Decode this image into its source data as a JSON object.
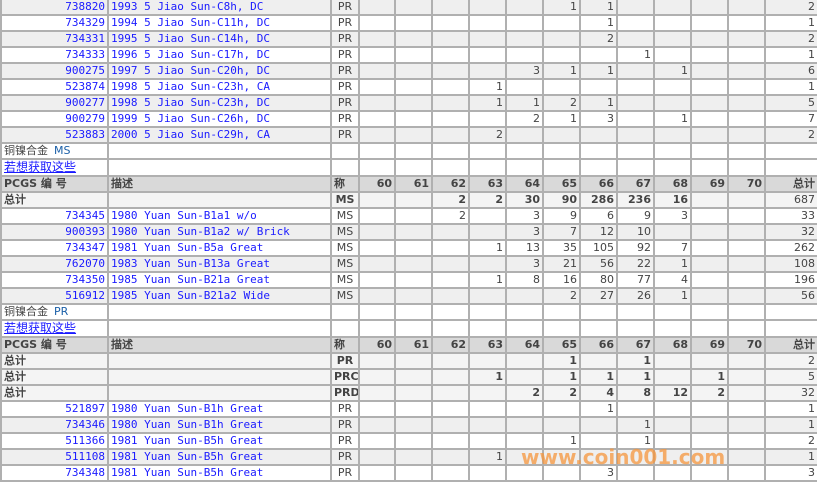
{
  "columns": {
    "pcgs": "PCGS 编 号",
    "desc": "描述",
    "grade": "称",
    "grades": [
      "60",
      "61",
      "62",
      "63",
      "64",
      "65",
      "66",
      "67",
      "68",
      "69",
      "70"
    ],
    "total": "总计"
  },
  "total_label": "总计",
  "top_rows": [
    {
      "id": "738820",
      "desc": "1993 5 Jiao Sun-C8h, DC",
      "grade": "PR",
      "vals": [
        "",
        "",
        "",
        "",
        "",
        "1",
        "1",
        "",
        "",
        "",
        ""
      ],
      "total": "2"
    },
    {
      "id": "734329",
      "desc": "1994 5 Jiao Sun-C11h, DC",
      "grade": "PR",
      "vals": [
        "",
        "",
        "",
        "",
        "",
        "",
        "1",
        "",
        "",
        "",
        ""
      ],
      "total": "1"
    },
    {
      "id": "734331",
      "desc": "1995 5 Jiao Sun-C14h, DC",
      "grade": "PR",
      "vals": [
        "",
        "",
        "",
        "",
        "",
        "",
        "2",
        "",
        "",
        "",
        ""
      ],
      "total": "2"
    },
    {
      "id": "734333",
      "desc": "1996 5 Jiao Sun-C17h, DC",
      "grade": "PR",
      "vals": [
        "",
        "",
        "",
        "",
        "",
        "",
        "",
        "1",
        "",
        "",
        ""
      ],
      "total": "1"
    },
    {
      "id": "900275",
      "desc": "1997 5 Jiao Sun-C20h, DC",
      "grade": "PR",
      "vals": [
        "",
        "",
        "",
        "",
        "3",
        "1",
        "1",
        "",
        "1",
        "",
        ""
      ],
      "total": "6"
    },
    {
      "id": "523874",
      "desc": "1998 5 Jiao Sun-C23h, CA",
      "grade": "PR",
      "vals": [
        "",
        "",
        "",
        "1",
        "",
        "",
        "",
        "",
        "",
        "",
        ""
      ],
      "total": "1"
    },
    {
      "id": "900277",
      "desc": "1998 5 Jiao Sun-C23h, DC",
      "grade": "PR",
      "vals": [
        "",
        "",
        "",
        "1",
        "1",
        "2",
        "1",
        "",
        "",
        "",
        ""
      ],
      "total": "5"
    },
    {
      "id": "900279",
      "desc": "1999 5 Jiao Sun-C26h, DC",
      "grade": "PR",
      "vals": [
        "",
        "",
        "",
        "",
        "2",
        "1",
        "3",
        "",
        "1",
        "",
        ""
      ],
      "total": "7"
    },
    {
      "id": "523883",
      "desc": "2000 5 Jiao Sun-C29h, CA",
      "grade": "PR",
      "vals": [
        "",
        "",
        "",
        "2",
        "",
        "",
        "",
        "",
        "",
        "",
        ""
      ],
      "total": "2"
    }
  ],
  "sections": [
    {
      "title": "铜镍合金",
      "code": "MS",
      "link": "若想获取这些",
      "totals": [
        {
          "grade": "MS",
          "vals": [
            "",
            "",
            "2",
            "2",
            "30",
            "90",
            "286",
            "236",
            "16",
            "",
            ""
          ],
          "total": "687"
        }
      ],
      "rows": [
        {
          "id": "734345",
          "desc": "1980 Yuan Sun-B1a1 w/o",
          "grade": "MS",
          "vals": [
            "",
            "",
            "2",
            "",
            "3",
            "9",
            "6",
            "9",
            "3",
            "",
            ""
          ],
          "total": "33"
        },
        {
          "id": "900393",
          "desc": "1980 Yuan Sun-B1a2 w/ Brick",
          "grade": "MS",
          "vals": [
            "",
            "",
            "",
            "",
            "3",
            "7",
            "12",
            "10",
            "",
            "",
            ""
          ],
          "total": "32"
        },
        {
          "id": "734347",
          "desc": "1981 Yuan Sun-B5a Great",
          "grade": "MS",
          "vals": [
            "",
            "",
            "",
            "1",
            "13",
            "35",
            "105",
            "92",
            "7",
            "",
            ""
          ],
          "total": "262"
        },
        {
          "id": "762070",
          "desc": "1983 Yuan Sun-B13a Great",
          "grade": "MS",
          "vals": [
            "",
            "",
            "",
            "",
            "3",
            "21",
            "56",
            "22",
            "1",
            "",
            ""
          ],
          "total": "108"
        },
        {
          "id": "734350",
          "desc": "1985 Yuan Sun-B21a Great",
          "grade": "MS",
          "vals": [
            "",
            "",
            "",
            "1",
            "8",
            "16",
            "80",
            "77",
            "4",
            "",
            ""
          ],
          "total": "196"
        },
        {
          "id": "516912",
          "desc": "1985 Yuan Sun-B21a2 Wide",
          "grade": "MS",
          "vals": [
            "",
            "",
            "",
            "",
            "",
            "2",
            "27",
            "26",
            "1",
            "",
            ""
          ],
          "total": "56"
        }
      ]
    },
    {
      "title": "铜镍合金",
      "code": "PR",
      "link": "若想获取这些",
      "totals": [
        {
          "grade": "PR",
          "vals": [
            "",
            "",
            "",
            "",
            "",
            "1",
            "",
            "1",
            "",
            "",
            ""
          ],
          "total": "2"
        },
        {
          "grade": "PRC",
          "vals": [
            "",
            "",
            "",
            "1",
            "",
            "1",
            "1",
            "1",
            "",
            "1",
            ""
          ],
          "total": "5"
        },
        {
          "grade": "PRD",
          "vals": [
            "",
            "",
            "",
            "",
            "2",
            "2",
            "4",
            "8",
            "12",
            "2",
            ""
          ],
          "total": "32"
        }
      ],
      "rows": [
        {
          "id": "521897",
          "desc": "1980 Yuan Sun-B1h Great",
          "grade": "PR",
          "vals": [
            "",
            "",
            "",
            "",
            "",
            "",
            "1",
            "",
            "",
            "",
            ""
          ],
          "total": "1"
        },
        {
          "id": "734346",
          "desc": "1980 Yuan Sun-B1h Great",
          "grade": "PR",
          "vals": [
            "",
            "",
            "",
            "",
            "",
            "",
            "",
            "1",
            "",
            "",
            ""
          ],
          "total": "1"
        },
        {
          "id": "511366",
          "desc": "1981 Yuan Sun-B5h Great",
          "grade": "PR",
          "vals": [
            "",
            "",
            "",
            "",
            "",
            "1",
            "",
            "1",
            "",
            "",
            ""
          ],
          "total": "2"
        },
        {
          "id": "511108",
          "desc": "1981 Yuan Sun-B5h Great",
          "grade": "PR",
          "vals": [
            "",
            "",
            "",
            "1",
            "",
            "",
            "",
            "",
            "",
            "",
            ""
          ],
          "total": "1"
        },
        {
          "id": "734348",
          "desc": "1981 Yuan Sun-B5h Great",
          "grade": "PR",
          "vals": [
            "",
            "",
            "",
            "",
            "",
            "",
            "3",
            "",
            "",
            "",
            ""
          ],
          "total": "3"
        }
      ]
    }
  ],
  "watermark": "www.coin001.com"
}
